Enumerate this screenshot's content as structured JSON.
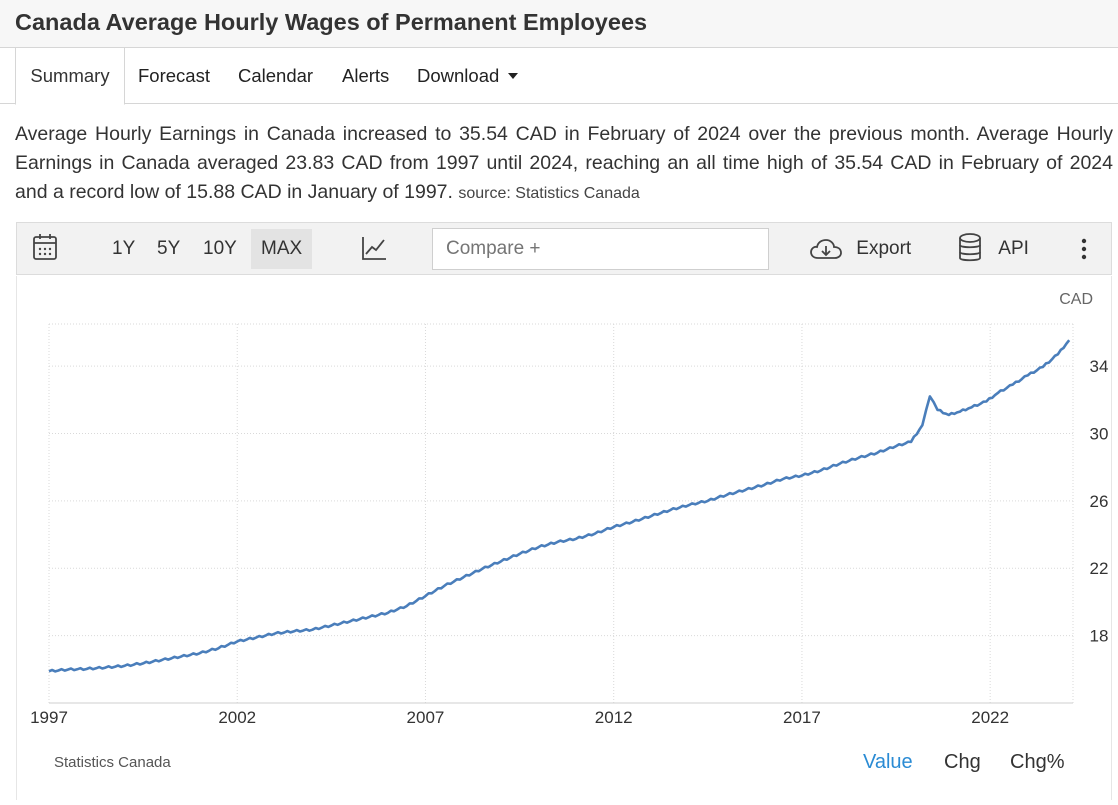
{
  "page": {
    "title": "Canada Average Hourly Wages of Permanent Employees"
  },
  "tabs": [
    {
      "label": "Summary",
      "active": true
    },
    {
      "label": "Forecast"
    },
    {
      "label": "Calendar"
    },
    {
      "label": "Alerts"
    },
    {
      "label": "Download",
      "has_dropdown": true
    }
  ],
  "description": {
    "text": "Average Hourly Earnings in Canada increased to 35.54 CAD in February of 2024 over the previous month. Average Hourly Earnings in Canada averaged 23.83 CAD from 1997 until 2024, reaching an all time high of 35.54 CAD in February of 2024 and a record low of 15.88 CAD in January of 1997.",
    "source": "source: Statistics Canada"
  },
  "toolbar": {
    "calendar_icon": "calendar-icon",
    "ranges": [
      "1Y",
      "5Y",
      "10Y",
      "MAX"
    ],
    "selected_range": "MAX",
    "chart_type_icon": "line-chart-icon",
    "compare_placeholder": "Compare +",
    "export_label": "Export",
    "export_icon": "cloud-download-icon",
    "api_label": "API",
    "api_icon": "database-icon",
    "more_icon": "vertical-dots-icon"
  },
  "chart_data": {
    "type": "line",
    "unit_label": "CAD",
    "x_ticks": [
      "1997",
      "2002",
      "2007",
      "2012",
      "2017",
      "2022"
    ],
    "y_ticks": [
      18,
      22,
      26,
      30,
      34
    ],
    "ylim": [
      14,
      36.5
    ],
    "xlim": [
      1997.0,
      2024.2
    ],
    "grid": true,
    "series": [
      {
        "color": "#4a7ebb",
        "points": [
          [
            1997.0,
            15.88
          ],
          [
            1997.5,
            15.98
          ],
          [
            1998.0,
            16.02
          ],
          [
            1998.5,
            16.1
          ],
          [
            1999.0,
            16.2
          ],
          [
            1999.5,
            16.35
          ],
          [
            2000.0,
            16.55
          ],
          [
            2000.5,
            16.75
          ],
          [
            2001.0,
            16.95
          ],
          [
            2001.5,
            17.25
          ],
          [
            2002.0,
            17.65
          ],
          [
            2002.5,
            17.88
          ],
          [
            2003.0,
            18.12
          ],
          [
            2003.5,
            18.25
          ],
          [
            2004.0,
            18.35
          ],
          [
            2004.5,
            18.6
          ],
          [
            2005.0,
            18.85
          ],
          [
            2005.5,
            19.1
          ],
          [
            2006.0,
            19.35
          ],
          [
            2006.5,
            19.75
          ],
          [
            2007.0,
            20.35
          ],
          [
            2007.5,
            20.95
          ],
          [
            2008.0,
            21.45
          ],
          [
            2008.5,
            21.95
          ],
          [
            2009.0,
            22.4
          ],
          [
            2009.5,
            22.85
          ],
          [
            2010.0,
            23.25
          ],
          [
            2010.5,
            23.55
          ],
          [
            2011.0,
            23.75
          ],
          [
            2011.5,
            24.05
          ],
          [
            2012.0,
            24.45
          ],
          [
            2012.5,
            24.75
          ],
          [
            2013.0,
            25.1
          ],
          [
            2013.5,
            25.45
          ],
          [
            2014.0,
            25.75
          ],
          [
            2014.5,
            26.0
          ],
          [
            2015.0,
            26.35
          ],
          [
            2015.5,
            26.65
          ],
          [
            2016.0,
            26.95
          ],
          [
            2016.5,
            27.3
          ],
          [
            2017.0,
            27.5
          ],
          [
            2017.5,
            27.8
          ],
          [
            2018.0,
            28.2
          ],
          [
            2018.5,
            28.55
          ],
          [
            2019.0,
            28.85
          ],
          [
            2019.5,
            29.25
          ],
          [
            2019.9,
            29.5
          ],
          [
            2020.2,
            30.5
          ],
          [
            2020.4,
            32.2
          ],
          [
            2020.6,
            31.4
          ],
          [
            2020.9,
            31.1
          ],
          [
            2021.2,
            31.3
          ],
          [
            2021.5,
            31.55
          ],
          [
            2021.9,
            31.9
          ],
          [
            2022.2,
            32.4
          ],
          [
            2022.6,
            32.9
          ],
          [
            2023.0,
            33.45
          ],
          [
            2023.4,
            33.95
          ],
          [
            2023.8,
            34.7
          ],
          [
            2024.1,
            35.54
          ]
        ]
      }
    ]
  },
  "footer": {
    "source": "Statistics Canada",
    "buttons": [
      "Value",
      "Chg",
      "Chg%"
    ],
    "active_button": "Value"
  }
}
